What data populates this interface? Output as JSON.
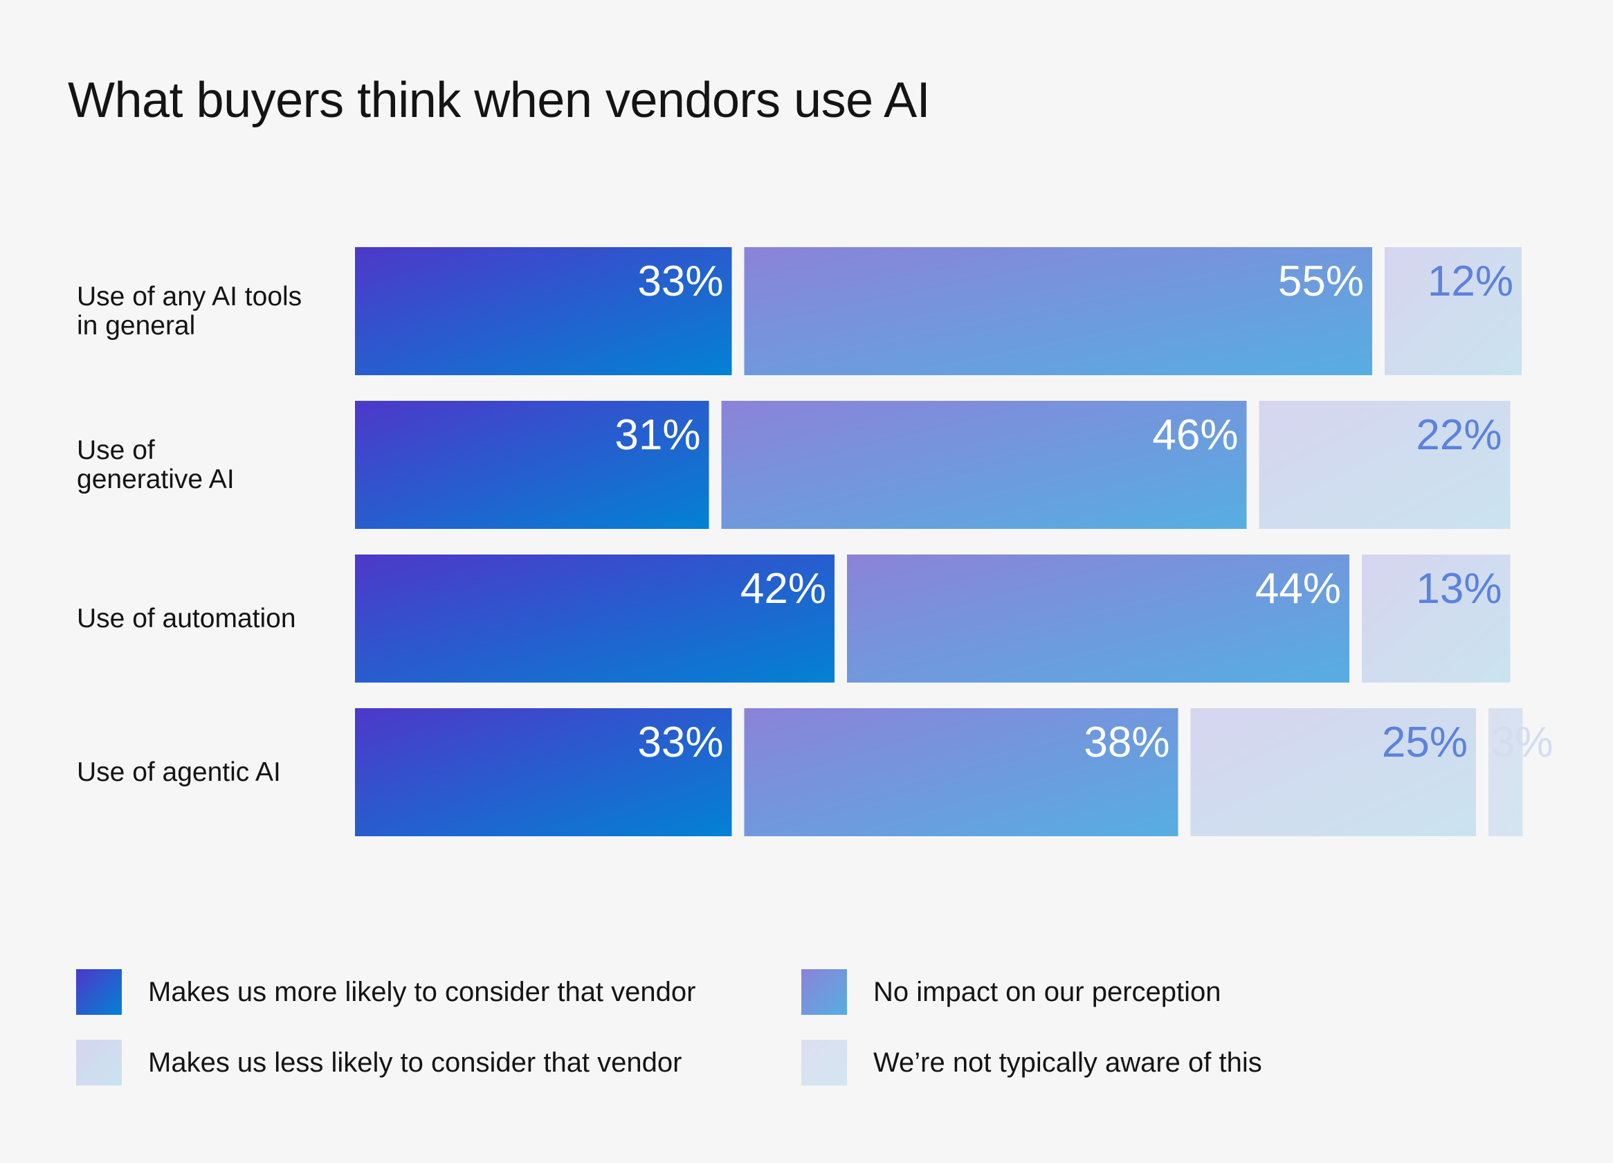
{
  "chart_data": {
    "type": "bar",
    "stacked": true,
    "orientation": "horizontal",
    "title": "What buyers think when vendors use AI",
    "categories": [
      "Use of any AI tools\nin general",
      "Use of\ngenerative AI",
      "Use of automation",
      "Use of agentic AI"
    ],
    "series": [
      {
        "name": "Makes us more likely to consider that vendor",
        "values": [
          33,
          31,
          42,
          33
        ],
        "labels": [
          "33%",
          "31%",
          "42%",
          "33%"
        ]
      },
      {
        "name": "No impact on our perception",
        "values": [
          55,
          46,
          44,
          38
        ],
        "labels": [
          "55%",
          "46%",
          "44%",
          "38%"
        ]
      },
      {
        "name": "Makes us less likely to consider that vendor",
        "values": [
          12,
          22,
          13,
          25
        ],
        "labels": [
          "12%",
          "22%",
          "13%",
          "25%"
        ]
      },
      {
        "name": "We’re not typically aware of this",
        "values": [
          null,
          null,
          null,
          3
        ],
        "labels": [
          "",
          "",
          "",
          "3%"
        ]
      }
    ],
    "legend_position": "bottom",
    "grid": false,
    "colors": {
      "more_likely": [
        "#4d38c9",
        "#0282d4"
      ],
      "no_impact": [
        "#8b83d8",
        "#56aee2"
      ],
      "less_likely": [
        "#d6d5ef",
        "#cae3ef"
      ],
      "not_aware": [
        "#dcdff0",
        "#d3e6f1"
      ],
      "label_white": "#ffffff",
      "label_blue": "#5b82dc",
      "label_faint": "#d4dcef",
      "background": "#f6f6f6"
    }
  }
}
